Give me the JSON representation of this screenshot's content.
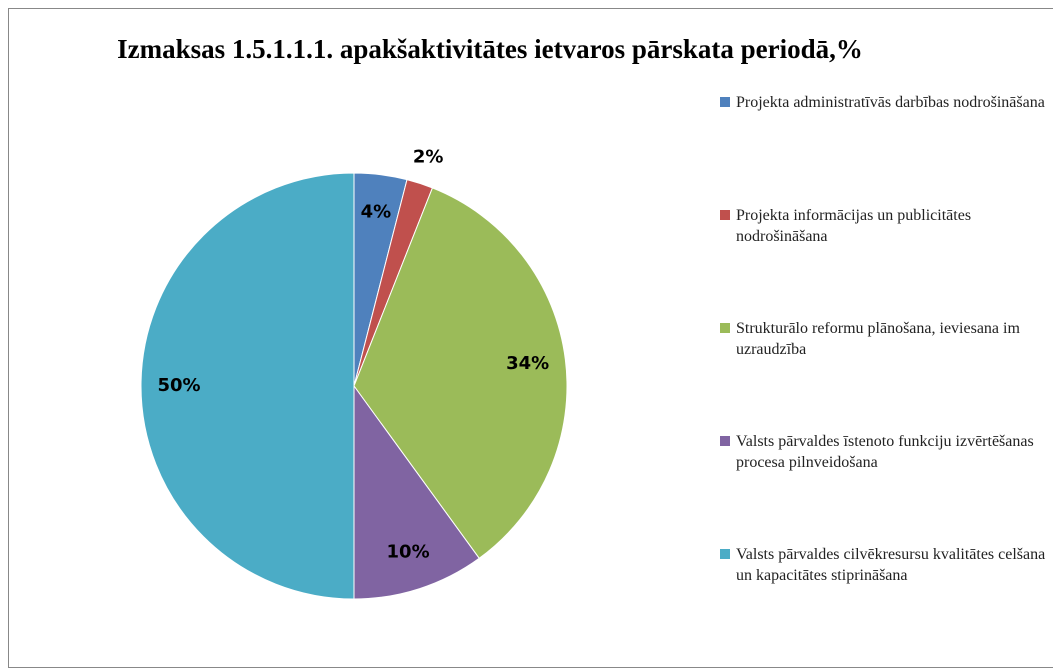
{
  "chart_data": {
    "type": "pie",
    "title": "Izmaksas 1.5.1.1.1. apakšaktivitātes ietvaros pārskata periodā,%",
    "categories": [
      "Projekta administratīvās darbības nodrošināšana",
      "Projekta informācijas un publicitātes nodrošināšana",
      "Strukturālo reformu  plānošana, ieviesana im uzraudzība",
      "Valsts pārvaldes īstenoto funkciju izvērtēšanas procesa pilnveidošana",
      "Valsts pārvaldes cilvēkresursu kvalitātes celšana un kapacitātes stiprināšana"
    ],
    "values": [
      4,
      2,
      34,
      10,
      50
    ],
    "value_labels": [
      "4%",
      "2%",
      "34%",
      "10%",
      "50%"
    ],
    "colors": [
      "#4f81bd",
      "#c0504d",
      "#9bbb59",
      "#8064a2",
      "#4bacc6"
    ],
    "legend": "right"
  }
}
